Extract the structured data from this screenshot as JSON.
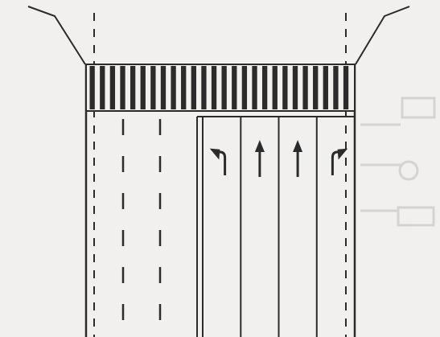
{
  "diagram": {
    "kind": "road-lane-markings",
    "colors": {
      "background": "#f1f0ee",
      "ink": "#2b2b2b",
      "bleed_through_text": "#c9c6c8"
    },
    "crosswalk": {
      "stripe_count": 26
    },
    "approach_lanes": [
      {
        "arrow": "left-turn-icon"
      },
      {
        "arrow": "straight-icon"
      },
      {
        "arrow": "straight-icon"
      },
      {
        "arrow": "right-turn-icon"
      }
    ],
    "departure_lanes": {
      "count": 3,
      "divider_style": "dashed"
    }
  }
}
